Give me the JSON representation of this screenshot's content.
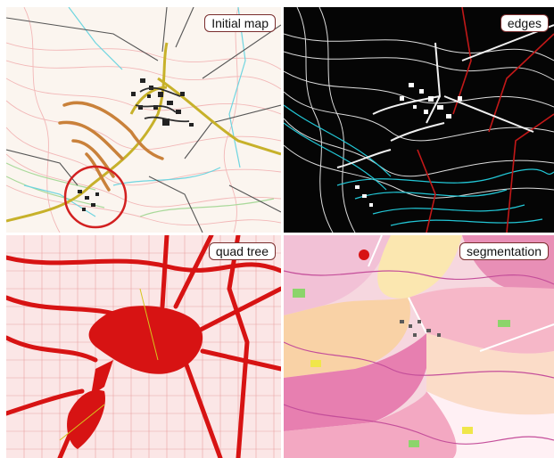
{
  "panels": {
    "initial": {
      "label": "Initial map"
    },
    "edges": {
      "label": "edges"
    },
    "quad": {
      "label": "quad tree"
    },
    "seg": {
      "label": "segmentation"
    }
  },
  "colors": {
    "highlight_circle": "#d22020",
    "edges_background": "#050505",
    "quad_red": "#d71313",
    "accent_yellow": "#d6c61c",
    "cyan": "#22c7d6"
  }
}
